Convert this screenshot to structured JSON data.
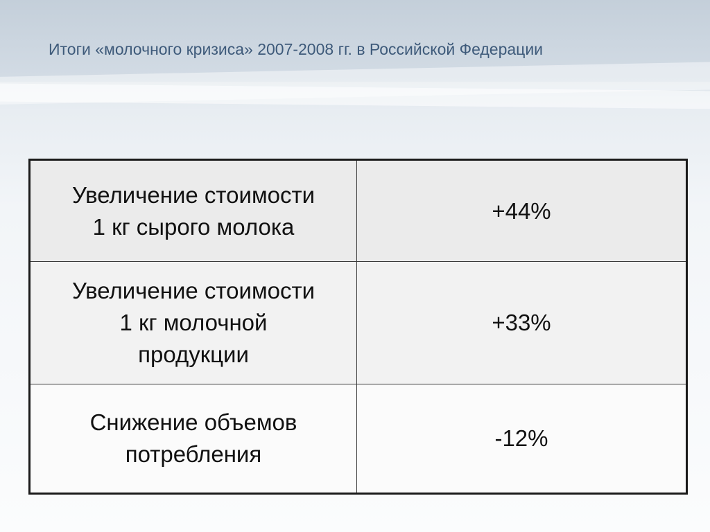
{
  "title": "Итоги «молочного кризиса» 2007-2008 гг. в Российской Федерации",
  "table": {
    "rows": [
      {
        "label_lines": [
          "Увеличение стоимости",
          "1 кг сырого молока"
        ],
        "value": "+44%"
      },
      {
        "label_lines": [
          "Увеличение стоимости",
          "1 кг молочной",
          "продукции"
        ],
        "value": "+33%"
      },
      {
        "label_lines": [
          "Снижение объемов",
          "потребления"
        ],
        "value": "-12%"
      }
    ]
  }
}
